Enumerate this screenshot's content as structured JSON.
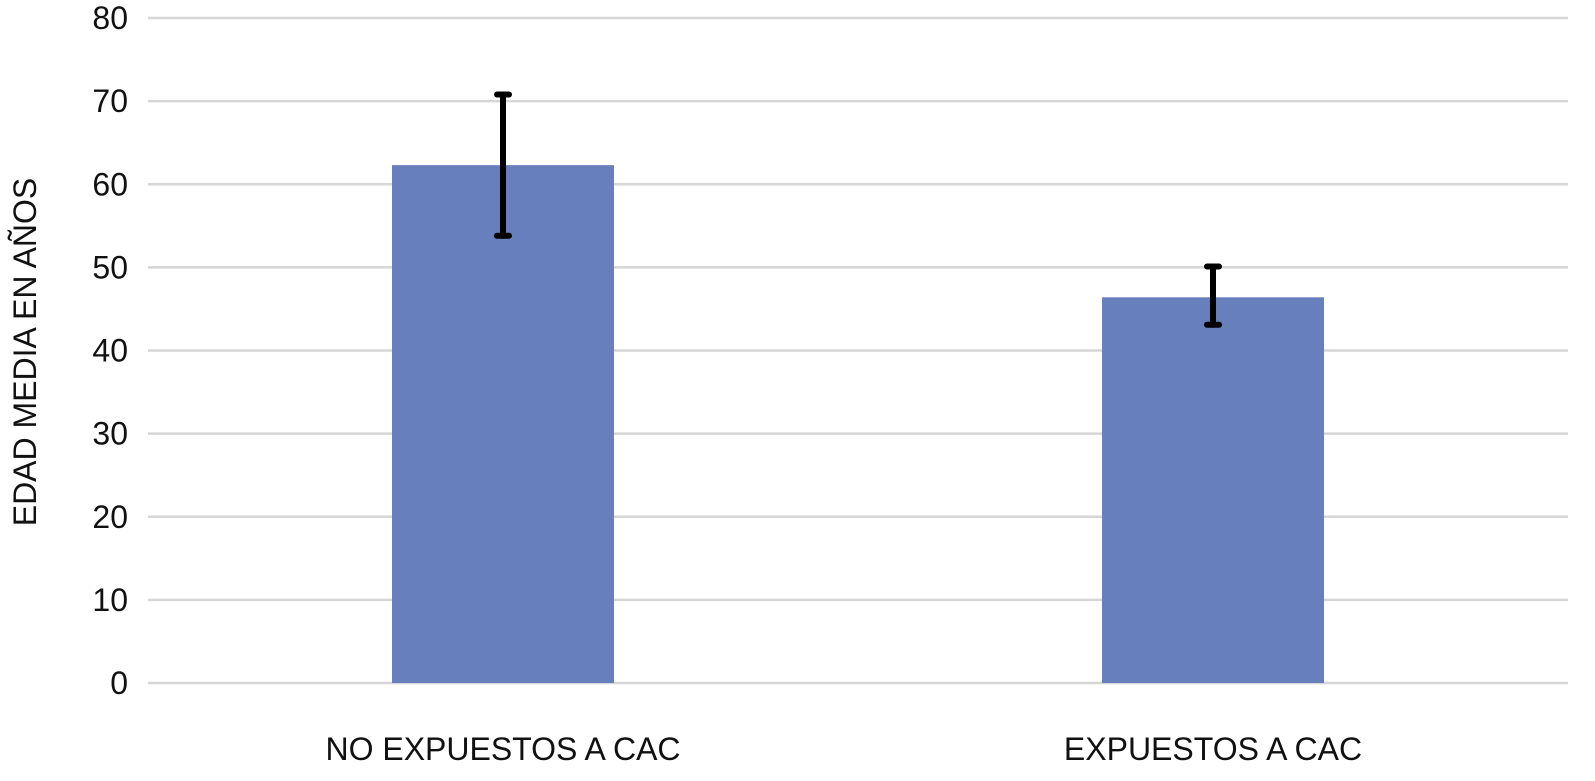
{
  "chart_data": {
    "type": "bar",
    "title": "",
    "xlabel": "",
    "ylabel": "EDAD MEDIA EN AÑOS",
    "categories": [
      "NO EXPUESTOS A CAC",
      "EXPUESTOS A CAC"
    ],
    "values": [
      62.3,
      46.4
    ],
    "error_bars": [
      {
        "low": 53.8,
        "high": 70.8
      },
      {
        "low": 43.1,
        "high": 50.1
      }
    ],
    "ylim": [
      0,
      80
    ],
    "yticks": [
      0,
      10,
      20,
      30,
      40,
      50,
      60,
      70,
      80
    ],
    "grid": true,
    "bar_color": "#6780bd",
    "error_bar_color": "#000000"
  }
}
